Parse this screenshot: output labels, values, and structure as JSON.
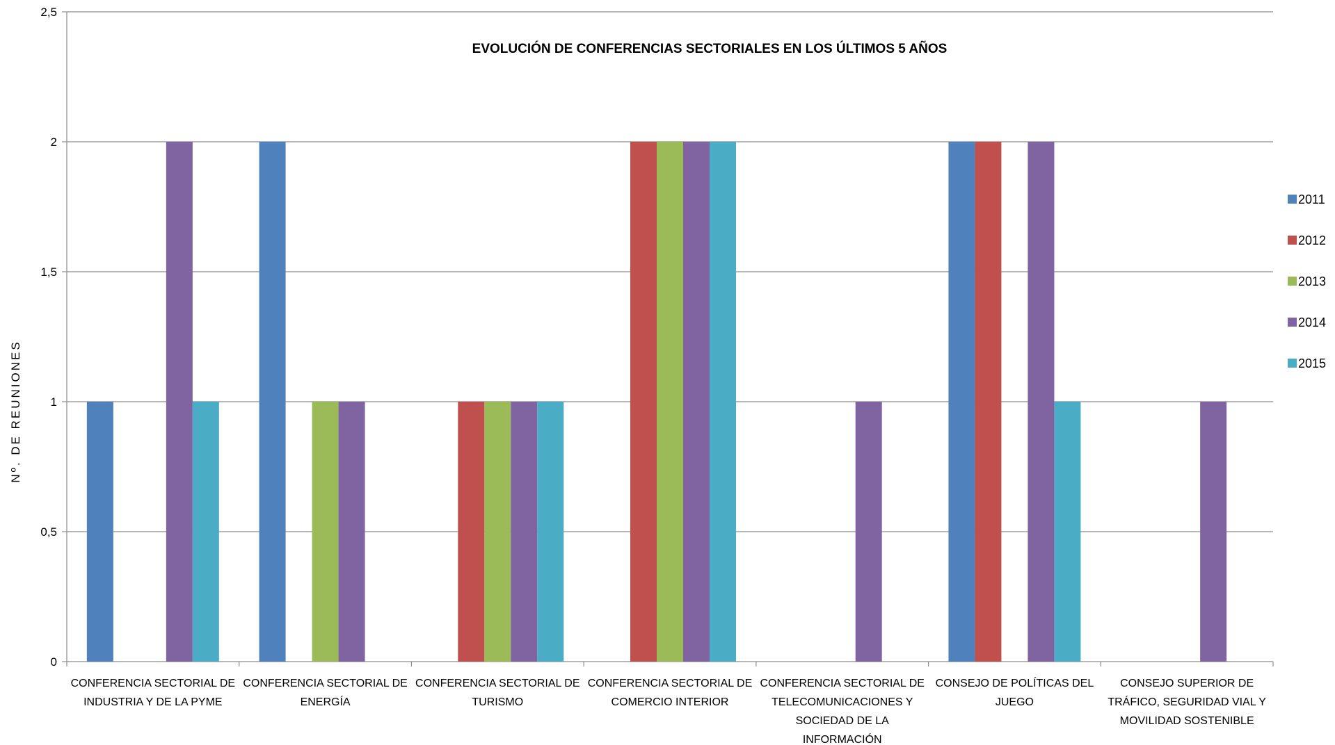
{
  "chart_data": {
    "type": "bar",
    "title": "EVOLUCIÓN DE CONFERENCIAS SECTORIALES EN LOS ÚLTIMOS 5 AÑOS",
    "xlabel": "",
    "ylabel": "Nº.  DE  REUNIONES",
    "ylim": [
      0,
      2.5
    ],
    "yticks": [
      "0",
      "0,5",
      "1",
      "1,5",
      "2",
      "2,5"
    ],
    "ytick_values": [
      0,
      0.5,
      1,
      1.5,
      2,
      2.5
    ],
    "grid": true,
    "legend_position": "right",
    "categories": [
      [
        "CONFERENCIA SECTORIAL DE",
        "INDUSTRIA Y DE LA PYME"
      ],
      [
        "CONFERENCIA SECTORIAL DE",
        "ENERGÍA"
      ],
      [
        "CONFERENCIA SECTORIAL DE",
        "TURISMO"
      ],
      [
        "CONFERENCIA SECTORIAL DE",
        "COMERCIO INTERIOR"
      ],
      [
        "CONFERENCIA SECTORIAL DE",
        "TELECOMUNICACIONES Y",
        "SOCIEDAD DE LA",
        "INFORMACIÓN"
      ],
      [
        "CONSEJO DE POLÍTICAS DEL",
        "JUEGO"
      ],
      [
        "CONSEJO SUPERIOR DE",
        "TRÁFICO, SEGURIDAD VIAL Y",
        "MOVILIDAD SOSTENIBLE"
      ]
    ],
    "series": [
      {
        "name": "2011",
        "color": "#4F81BD",
        "values": [
          1,
          2,
          0,
          0,
          0,
          2,
          0
        ]
      },
      {
        "name": "2012",
        "color": "#C0504D",
        "values": [
          0,
          0,
          1,
          2,
          0,
          2,
          0
        ]
      },
      {
        "name": "2013",
        "color": "#9BBB59",
        "values": [
          0,
          1,
          1,
          2,
          0,
          0,
          0
        ]
      },
      {
        "name": "2014",
        "color": "#8064A2",
        "values": [
          2,
          1,
          1,
          2,
          1,
          2,
          1
        ]
      },
      {
        "name": "2015",
        "color": "#4BACC6",
        "values": [
          1,
          0,
          1,
          2,
          0,
          1,
          0
        ]
      }
    ]
  }
}
